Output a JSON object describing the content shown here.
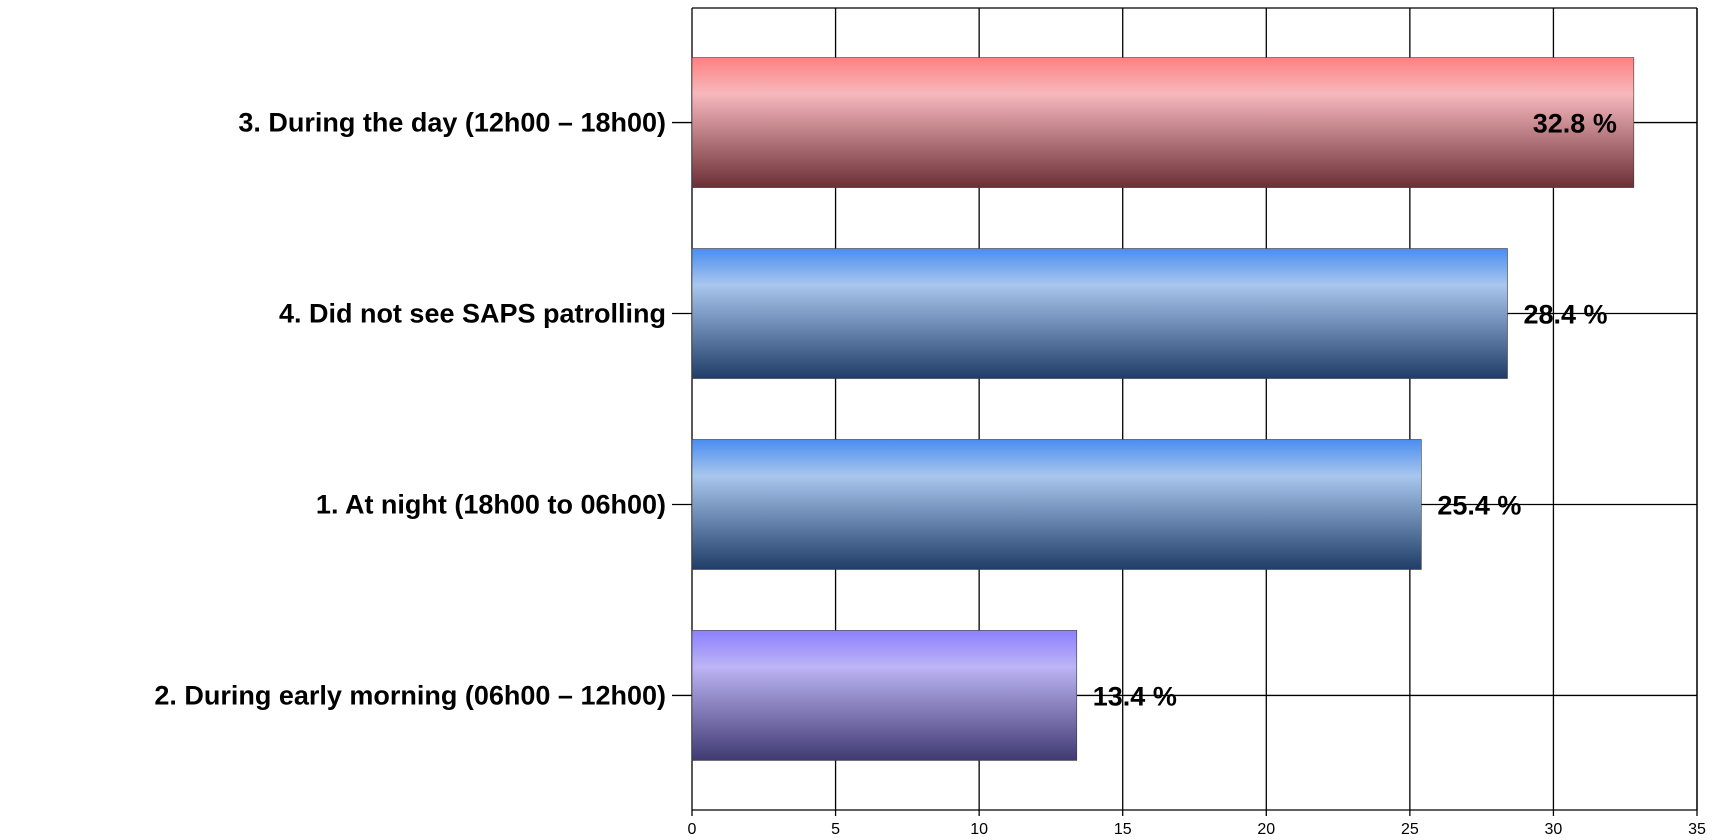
{
  "chart_data": {
    "type": "bar",
    "orientation": "horizontal",
    "title": "",
    "xlabel": "",
    "ylabel": "",
    "xlim": [
      0,
      35
    ],
    "x_ticks": [
      "0",
      "5",
      "10",
      "15",
      "20",
      "25",
      "30",
      "35"
    ],
    "grid": true,
    "legend": "none",
    "value_suffix": " %",
    "categories": [
      "3. During the day (12h00 – 18h00)",
      "4. Did not see SAPS patrolling",
      "1. At night (18h00 to 06h00)",
      "2. During early morning (06h00 – 12h00)"
    ],
    "values": [
      32.8,
      28.4,
      25.4,
      13.4
    ],
    "value_labels": [
      "32.8 %",
      "28.4 %",
      "25.4 %",
      "13.4 %"
    ],
    "bar_colors": [
      {
        "top": "#ff8080",
        "mid": "#f6b8bd",
        "bottom": "#6b2f35"
      },
      {
        "top": "#4a8df0",
        "mid": "#a8c6ee",
        "bottom": "#1f3d66"
      },
      {
        "top": "#4a8df0",
        "mid": "#a8c6ee",
        "bottom": "#1f3d66"
      },
      {
        "top": "#8c80ff",
        "mid": "#bcb4f4",
        "bottom": "#403a72"
      }
    ]
  }
}
